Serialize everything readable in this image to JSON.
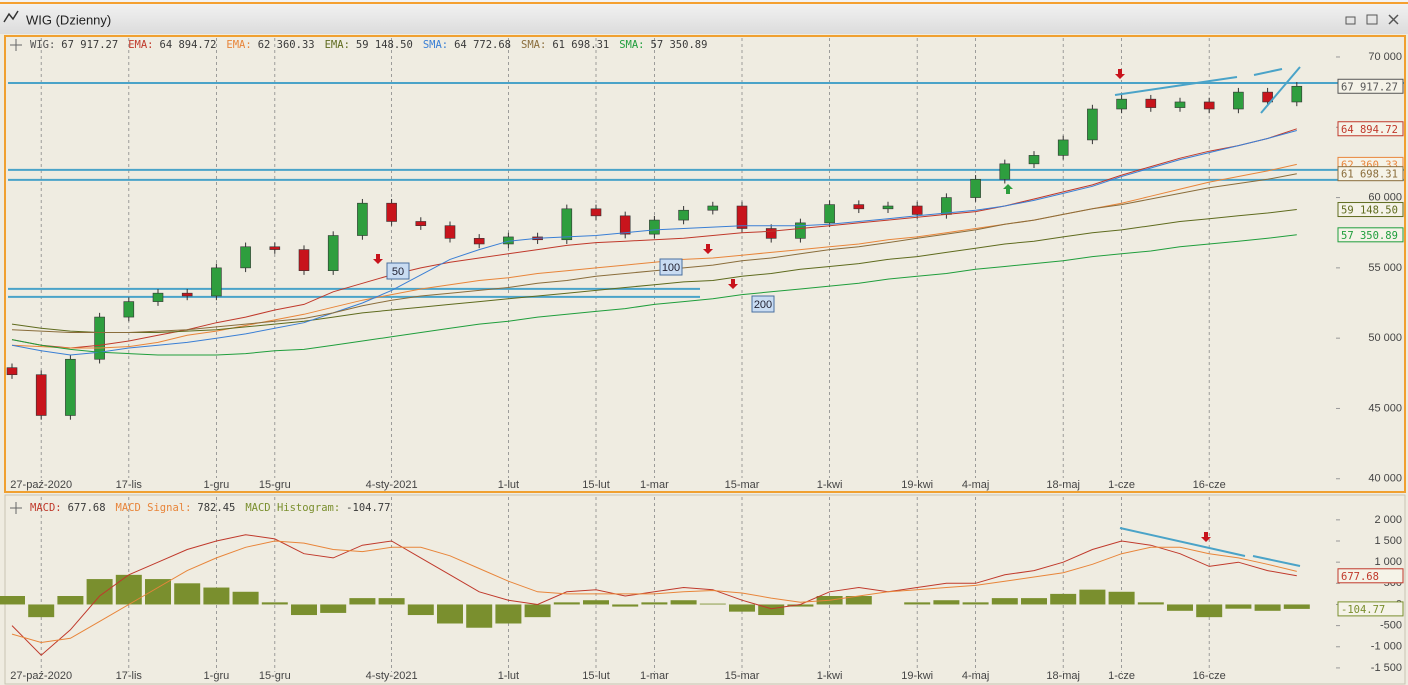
{
  "window": {
    "title": "WIG (Dzienny)"
  },
  "chart_data": [
    {
      "type": "candlestick",
      "categories": [
        null,
        "27-paź-2020",
        null,
        null,
        "17-lis",
        null,
        null,
        "1-gru",
        null,
        "15-gru",
        null,
        null,
        null,
        "4-sty-2021",
        null,
        null,
        null,
        "1-lut",
        null,
        null,
        "15-lut",
        null,
        "1-mar",
        null,
        null,
        "15-mar",
        null,
        null,
        "1-kwi",
        null,
        null,
        "19-kwi",
        null,
        "4-maj",
        null,
        null,
        "18-maj",
        null,
        "1-cze",
        null,
        null,
        "16-cze",
        null,
        null,
        null
      ],
      "ylim": [
        39200,
        71350
      ],
      "yticks": [
        {
          "value": 40000,
          "label": "40 000"
        },
        {
          "value": 45000,
          "label": "45 000"
        },
        {
          "value": 50000,
          "label": "50 000"
        },
        {
          "value": 55000,
          "label": "55 000"
        },
        {
          "value": 60000,
          "label": "60 000"
        },
        {
          "value": 65000,
          "label": "65 000"
        },
        {
          "value": 70000,
          "label": "70 000"
        }
      ],
      "grid": true,
      "levels": [
        68150,
        61970,
        61260
      ],
      "short_levels": [
        53510,
        52940
      ],
      "level_color": "#4aa3c8",
      "ma_tags": [
        "50",
        "100",
        "200"
      ],
      "series": [
        {
          "name": "WIG:",
          "type": "candlestick",
          "color": "#555555",
          "up_color": "#2e9e3e",
          "down_color": "#c8141c",
          "last_value_label": "67 917.27",
          "box": true,
          "open": [
            47900,
            47400,
            44500,
            48500,
            51500,
            52600,
            53200,
            53000,
            55000,
            56500,
            56300,
            54800,
            57300,
            59600,
            58300,
            58000,
            57100,
            56700,
            57200,
            57000,
            59200,
            58700,
            57400,
            58400,
            59100,
            59400,
            57800,
            57100,
            58200,
            59500,
            59200,
            59400,
            58800,
            60000,
            61300,
            62400,
            63000,
            64100,
            66300,
            67000,
            66400,
            66800,
            66300,
            67500,
            66800
          ],
          "high": [
            48200,
            47700,
            48800,
            51800,
            52900,
            53500,
            53500,
            55300,
            56800,
            56800,
            56600,
            57600,
            59900,
            59900,
            58600,
            58300,
            57400,
            57500,
            57500,
            59500,
            59500,
            59000,
            58700,
            59400,
            59700,
            59700,
            58100,
            58500,
            59800,
            59800,
            59700,
            59700,
            60300,
            61600,
            62700,
            63300,
            64400,
            66600,
            67300,
            67300,
            67100,
            67100,
            67800,
            67800,
            68217
          ],
          "low": [
            47100,
            44200,
            44200,
            48200,
            51200,
            52300,
            52700,
            52700,
            54700,
            56000,
            54500,
            54500,
            57000,
            58000,
            57700,
            56800,
            56400,
            56400,
            56700,
            56700,
            58400,
            57100,
            57100,
            58100,
            58800,
            57500,
            56800,
            56800,
            57900,
            58900,
            58900,
            58500,
            58500,
            59700,
            61000,
            62100,
            62700,
            63800,
            66000,
            66100,
            66100,
            66000,
            66000,
            66500,
            66500
          ],
          "close": [
            47400,
            44500,
            48500,
            51500,
            52600,
            53200,
            53000,
            55000,
            56500,
            56300,
            54800,
            57300,
            59600,
            58300,
            58000,
            57100,
            56700,
            57200,
            57000,
            59200,
            58700,
            57400,
            58400,
            59100,
            59400,
            57800,
            57100,
            58200,
            59500,
            59200,
            59400,
            58800,
            60000,
            61300,
            62400,
            63000,
            64100,
            66300,
            67000,
            66400,
            66800,
            66300,
            67500,
            66800,
            67917.27
          ]
        },
        {
          "name": "EMA:",
          "type": "line",
          "color": "#c0392b",
          "last_value_label": "64 894.72",
          "box": true,
          "values": [
            49900,
            49500,
            49300,
            49500,
            49800,
            50200,
            50600,
            51100,
            51500,
            52000,
            52400,
            53300,
            53900,
            54500,
            55000,
            55400,
            55700,
            56000,
            56300,
            56600,
            56800,
            56900,
            57000,
            57100,
            57300,
            57500,
            57600,
            57800,
            58000,
            58200,
            58400,
            58600,
            58800,
            59000,
            59400,
            59900,
            60400,
            60900,
            61600,
            62200,
            62800,
            63300,
            63700,
            64200,
            64894.72
          ]
        },
        {
          "name": "EMA:",
          "type": "line",
          "color": "#e8853a",
          "last_value_label": "62 360.33",
          "box": true,
          "values": [
            49500,
            49400,
            49300,
            49300,
            49400,
            49700,
            50200,
            50500,
            50900,
            51300,
            51700,
            52200,
            52700,
            53100,
            53500,
            53800,
            54100,
            54300,
            54600,
            54800,
            55000,
            55200,
            55400,
            55600,
            55700,
            55900,
            56100,
            56300,
            56500,
            56700,
            57000,
            57200,
            57500,
            57800,
            58100,
            58400,
            58800,
            59200,
            59600,
            60100,
            60600,
            61100,
            61500,
            61900,
            62360.33
          ]
        },
        {
          "name": "EMA:",
          "type": "line",
          "color": "#5f6b1e",
          "last_value_label": "59 148.50",
          "box": true,
          "values": [
            51000,
            50700,
            50500,
            50400,
            50400,
            50400,
            50500,
            50600,
            50800,
            51000,
            51200,
            51500,
            51800,
            52000,
            52200,
            52400,
            52600,
            52800,
            53000,
            53200,
            53400,
            53600,
            53800,
            54000,
            54100,
            54400,
            54600,
            54900,
            55100,
            55300,
            55600,
            55800,
            56100,
            56400,
            56700,
            56900,
            57200,
            57500,
            57700,
            58000,
            58300,
            58500,
            58700,
            58900,
            59148.5
          ]
        },
        {
          "name": "SMA:",
          "type": "line",
          "color": "#3a7fd5",
          "last_value_label": "64 772.68",
          "box": false,
          "values": [
            49500,
            49100,
            48800,
            49000,
            49300,
            49500,
            49700,
            50000,
            50300,
            50700,
            51100,
            51800,
            52500,
            53400,
            54500,
            55600,
            56300,
            56900,
            57100,
            57200,
            57300,
            57500,
            57700,
            57800,
            57900,
            58000,
            58000,
            58000,
            58100,
            58300,
            58500,
            58700,
            58900,
            59100,
            59400,
            59800,
            60300,
            60800,
            61500,
            62100,
            62700,
            63200,
            63700,
            64200,
            64772.68
          ]
        },
        {
          "name": "SMA:",
          "type": "line",
          "color": "#8a6d3b",
          "last_value_label": "61 698.31",
          "box": true,
          "values": [
            50600,
            50500,
            50400,
            50400,
            50400,
            50500,
            50600,
            50800,
            51000,
            51200,
            51400,
            51800,
            52300,
            52700,
            53000,
            53200,
            53400,
            53600,
            53900,
            54100,
            54400,
            54600,
            54800,
            55000,
            55200,
            55500,
            55700,
            56000,
            56300,
            56500,
            56800,
            57100,
            57400,
            57700,
            58100,
            58400,
            58800,
            59200,
            59500,
            59900,
            60300,
            60700,
            61000,
            61300,
            61698.31
          ]
        },
        {
          "name": "SMA:",
          "type": "line",
          "color": "#1f9e3c",
          "last_value_label": "57 350.89",
          "box": true,
          "values": [
            49900,
            49500,
            49200,
            49000,
            48900,
            48800,
            48800,
            48800,
            48900,
            49100,
            49200,
            49500,
            49800,
            50100,
            50400,
            50700,
            51000,
            51200,
            51500,
            51700,
            51900,
            52100,
            52400,
            52600,
            52800,
            53100,
            53300,
            53500,
            53700,
            53900,
            54200,
            54400,
            54600,
            54900,
            55100,
            55300,
            55500,
            55800,
            56000,
            56200,
            56500,
            56700,
            56900,
            57100,
            57350.89
          ]
        }
      ]
    },
    {
      "type": "macd",
      "categories": [
        null,
        "27-paź-2020",
        null,
        null,
        "17-lis",
        null,
        null,
        "1-gru",
        null,
        "15-gru",
        null,
        null,
        null,
        "4-sty-2021",
        null,
        null,
        null,
        "1-lut",
        null,
        null,
        "15-lut",
        null,
        "1-mar",
        null,
        null,
        "15-mar",
        null,
        null,
        "1-kwi",
        null,
        null,
        "19-kwi",
        null,
        "4-maj",
        null,
        null,
        "18-maj",
        null,
        "1-cze",
        null,
        null,
        "16-cze",
        null,
        null,
        null
      ],
      "ylim": [
        -1880,
        2540
      ],
      "yticks": [
        {
          "value": -1500,
          "label": "-1 500"
        },
        {
          "value": -1000,
          "label": "-1 000"
        },
        -500,
        0,
        500,
        {
          "value": 1000,
          "label": "1 000"
        },
        {
          "value": 1500,
          "label": "1 500"
        },
        {
          "value": 2000,
          "label": "2 000"
        }
      ],
      "grid": true,
      "series": [
        {
          "name": "MACD:",
          "type": "line",
          "color": "#c0392b",
          "box": true,
          "values": [
            -500,
            -1200,
            -600,
            200,
            700,
            1000,
            1300,
            1500,
            1650,
            1550,
            1200,
            1100,
            1400,
            1500,
            1100,
            700,
            300,
            100,
            0,
            300,
            350,
            200,
            300,
            400,
            350,
            100,
            -100,
            0,
            300,
            400,
            300,
            400,
            500,
            500,
            700,
            800,
            1000,
            1300,
            1500,
            1400,
            1200,
            900,
            1000,
            800,
            677.68
          ]
        },
        {
          "name": "MACD Signal:",
          "type": "line",
          "color": "#e8853a",
          "box": false,
          "values": [
            -700,
            -900,
            -800,
            -400,
            0,
            400,
            800,
            1100,
            1350,
            1500,
            1450,
            1300,
            1250,
            1350,
            1350,
            1150,
            850,
            550,
            300,
            250,
            250,
            250,
            250,
            300,
            330,
            270,
            150,
            50,
            100,
            200,
            300,
            350,
            400,
            450,
            550,
            650,
            750,
            950,
            1200,
            1350,
            1350,
            1200,
            1100,
            950,
            782.45
          ]
        },
        {
          "name": "MACD Histogram:",
          "type": "histogram",
          "color": "#7a8f2e",
          "box": true,
          "values": [
            200,
            -300,
            200,
            600,
            700,
            600,
            500,
            400,
            300,
            50,
            -250,
            -200,
            150,
            150,
            -250,
            -450,
            -550,
            -450,
            -300,
            50,
            100,
            -50,
            50,
            100,
            20,
            -170,
            -250,
            -50,
            200,
            200,
            0,
            50,
            100,
            50,
            150,
            150,
            250,
            350,
            300,
            50,
            -150,
            -300,
            -100,
            -150,
            -104.77
          ]
        }
      ]
    }
  ]
}
